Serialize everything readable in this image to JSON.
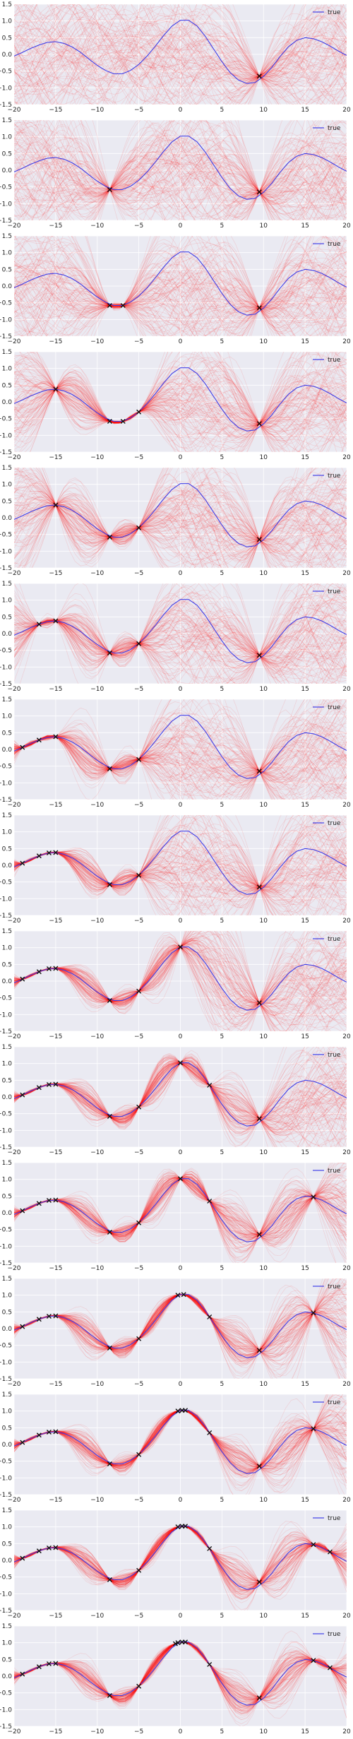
{
  "chart_data": {
    "type": "line",
    "xlim": [
      -20,
      20
    ],
    "ylim": [
      -1.5,
      1.5
    ],
    "x_ticks": [
      -20,
      -15,
      -10,
      -5,
      0,
      5,
      10,
      15,
      20
    ],
    "y_ticks": [
      -1.5,
      -1.0,
      -0.5,
      0.0,
      0.5,
      1.0,
      1.5
    ],
    "x_tick_labels": [
      "−20",
      "−15",
      "−10",
      "−5",
      "0",
      "5",
      "10",
      "15",
      "20"
    ],
    "y_tick_labels": [
      "−1.5",
      "−1.0",
      "−0.5",
      "0.0",
      "0.5",
      "1.0",
      "1.5"
    ],
    "grid": true,
    "legend_position": "top-right",
    "legend_label": "true",
    "colors": {
      "true_function": "#4040e8",
      "samples": "#ff1010",
      "observations": "#111111",
      "background": "#eaeaf2",
      "grid": "#ffffff"
    },
    "true_function": {
      "name": "true",
      "x": [
        -20,
        -19,
        -18,
        -17,
        -16,
        -15,
        -14,
        -13,
        -12,
        -11,
        -10,
        -9,
        -8,
        -7,
        -6,
        -5,
        -4,
        -3,
        -2,
        -1,
        0,
        1,
        2,
        3,
        4,
        5,
        6,
        7,
        8,
        9,
        10,
        11,
        12,
        13,
        14,
        15,
        16,
        17,
        18,
        19,
        20
      ],
      "y": [
        -0.05,
        0.06,
        0.18,
        0.28,
        0.36,
        0.38,
        0.33,
        0.22,
        0.06,
        -0.14,
        -0.33,
        -0.48,
        -0.58,
        -0.58,
        -0.48,
        -0.3,
        -0.05,
        0.25,
        0.57,
        0.85,
        1.02,
        1.02,
        0.85,
        0.54,
        0.16,
        -0.22,
        -0.55,
        -0.77,
        -0.87,
        -0.84,
        -0.66,
        -0.39,
        -0.06,
        0.23,
        0.42,
        0.5,
        0.47,
        0.38,
        0.25,
        0.1,
        -0.03
      ]
    },
    "sample_counts": [
      120,
      120,
      120,
      120,
      120,
      120,
      120,
      120,
      120,
      120,
      120,
      120,
      120,
      120,
      120
    ],
    "observations_per_panel": [
      {
        "x": [
          9.5
        ],
        "y": [
          -0.65
        ]
      },
      {
        "x": [
          -8.5,
          9.5
        ],
        "y": [
          -0.58,
          -0.65
        ]
      },
      {
        "x": [
          -8.5,
          -6.9,
          9.5
        ],
        "y": [
          -0.58,
          -0.58,
          -0.65
        ]
      },
      {
        "x": [
          -15,
          -8.5,
          -6.9,
          -5,
          9.5
        ],
        "y": [
          0.38,
          -0.58,
          -0.58,
          -0.3,
          -0.65
        ]
      },
      {
        "x": [
          -15,
          -8.5,
          -5,
          9.5
        ],
        "y": [
          0.38,
          -0.58,
          -0.3,
          -0.65
        ]
      },
      {
        "x": [
          -17,
          -15,
          -8.5,
          -5,
          9.5
        ],
        "y": [
          0.28,
          0.38,
          -0.58,
          -0.3,
          -0.65
        ]
      },
      {
        "x": [
          -19,
          -17,
          -15,
          -8.5,
          -5,
          9.5
        ],
        "y": [
          0.06,
          0.28,
          0.38,
          -0.58,
          -0.3,
          -0.65
        ]
      },
      {
        "x": [
          -19,
          -17,
          -15.8,
          -15,
          -8.5,
          -5,
          9.5
        ],
        "y": [
          0.06,
          0.28,
          0.37,
          0.38,
          -0.58,
          -0.3,
          -0.65
        ]
      },
      {
        "x": [
          -19,
          -17,
          -15.8,
          -15,
          -8.5,
          -5,
          0,
          9.5
        ],
        "y": [
          0.06,
          0.28,
          0.37,
          0.38,
          -0.58,
          -0.3,
          1.02,
          -0.65
        ]
      },
      {
        "x": [
          -19,
          -17,
          -15.8,
          -15,
          -8.5,
          -5,
          0,
          3.5,
          9.5
        ],
        "y": [
          0.06,
          0.28,
          0.37,
          0.38,
          -0.58,
          -0.3,
          1.02,
          0.35,
          -0.65
        ]
      },
      {
        "x": [
          -19,
          -17,
          -15.8,
          -15,
          -8.5,
          -5,
          0,
          3.5,
          9.5,
          16
        ],
        "y": [
          0.06,
          0.28,
          0.37,
          0.38,
          -0.58,
          -0.3,
          1.02,
          0.35,
          -0.65,
          0.47
        ]
      },
      {
        "x": [
          -19,
          -17,
          -15.8,
          -15,
          -8.5,
          -5,
          -0.3,
          0.4,
          3.5,
          9.5,
          16
        ],
        "y": [
          0.06,
          0.28,
          0.37,
          0.38,
          -0.58,
          -0.3,
          1.0,
          1.02,
          0.35,
          -0.65,
          0.47
        ]
      },
      {
        "x": [
          -19,
          -17,
          -15.8,
          -15,
          -8.5,
          -5,
          -0.3,
          0.2,
          0.6,
          3.5,
          9.5,
          16
        ],
        "y": [
          0.06,
          0.28,
          0.37,
          0.38,
          -0.58,
          -0.3,
          1.0,
          1.02,
          1.02,
          0.35,
          -0.65,
          0.47
        ]
      },
      {
        "x": [
          -19,
          -17,
          -15.8,
          -15,
          -8.5,
          -5,
          -0.3,
          0.2,
          0.6,
          3.5,
          9.5,
          16,
          18
        ],
        "y": [
          0.06,
          0.28,
          0.37,
          0.38,
          -0.58,
          -0.3,
          1.0,
          1.02,
          1.02,
          0.35,
          -0.65,
          0.47,
          0.25
        ]
      },
      {
        "x": [
          -19,
          -17,
          -15.8,
          -15,
          -8.5,
          -5,
          -0.6,
          -0.3,
          0.2,
          0.6,
          3.5,
          9.5,
          16,
          18
        ],
        "y": [
          0.06,
          0.28,
          0.37,
          0.38,
          -0.58,
          -0.3,
          0.97,
          1.0,
          1.02,
          1.02,
          0.35,
          -0.65,
          0.47,
          0.25
        ]
      }
    ]
  }
}
